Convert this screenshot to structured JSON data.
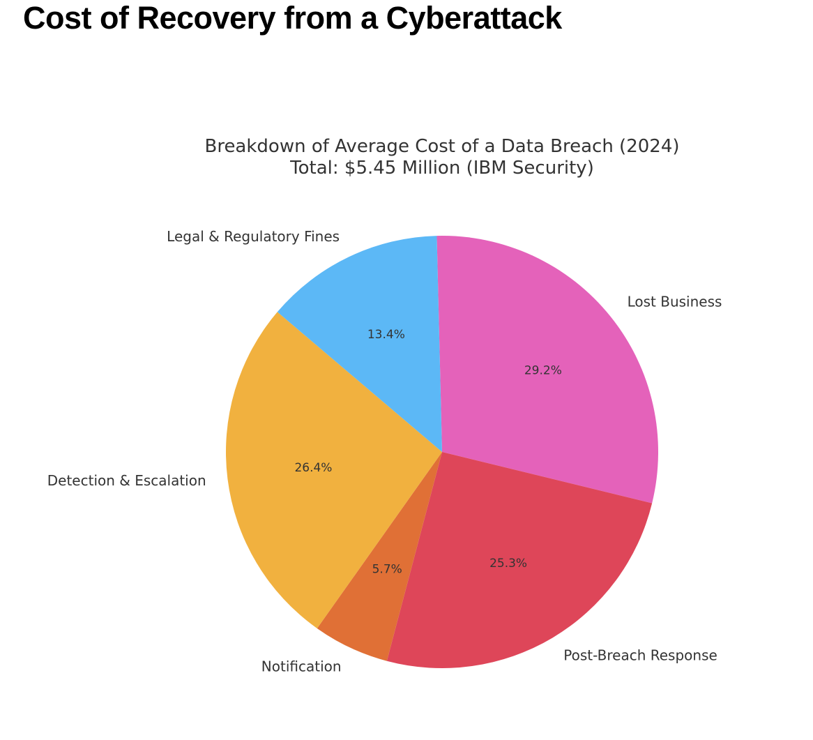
{
  "page": {
    "heading": "Cost of Recovery from a Cyberattack"
  },
  "chart_data": {
    "type": "pie",
    "title_lines": [
      "Breakdown of Average Cost of a Data Breach (2024)",
      "Total: $5.45 Million (IBM Security)"
    ],
    "slices": [
      {
        "label": "Lost Business",
        "value": 29.2,
        "pct_label": "29.2%",
        "color": "#E462BA"
      },
      {
        "label": "Post-Breach Response",
        "value": 25.3,
        "pct_label": "25.3%",
        "color": "#DE4659"
      },
      {
        "label": "Notification",
        "value": 5.7,
        "pct_label": "5.7%",
        "color": "#E07036"
      },
      {
        "label": "Detection & Escalation",
        "value": 26.4,
        "pct_label": "26.4%",
        "color": "#F1B13F"
      },
      {
        "label": "Legal & Regulatory Fines",
        "value": 13.4,
        "pct_label": "13.4%",
        "color": "#5CB8F6"
      }
    ],
    "start_angle_deg": 91.4,
    "direction": "clockwise",
    "legend": "none"
  }
}
